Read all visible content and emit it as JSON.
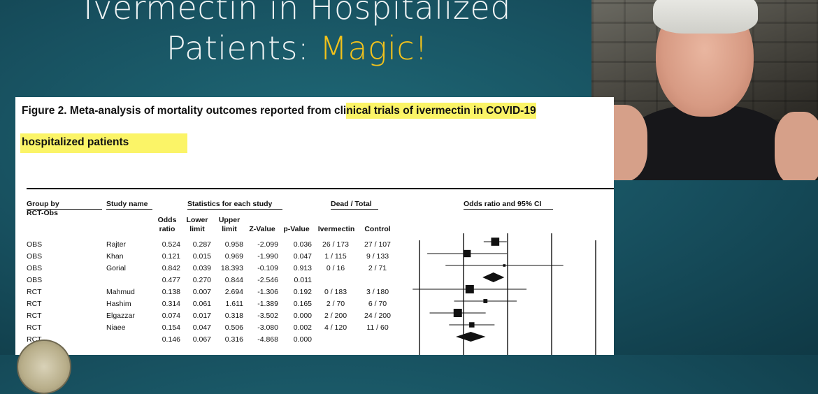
{
  "slide": {
    "title_line1": "Ivermectin in Hospitalized",
    "title_line2_prefix": "Patients:",
    "title_line2_accent": "Magic!"
  },
  "figure": {
    "caption_part1": "Figure 2.  Meta-analysis of mortality outcomes reported from cli",
    "caption_part2": "nical trials of ivermectin in COVID-19",
    "caption_line2": "hospitalized patients"
  },
  "table": {
    "headers": {
      "group_by": "Group by",
      "rct_obs": "RCT-Obs",
      "study_name": "Study name",
      "statistics": "Statistics for each study",
      "dead_total": "Dead / Total",
      "odds_ratio_ci": "Odds ratio and 95% CI",
      "odds_ratio_l1": "Odds",
      "odds_ratio_l2": "ratio",
      "lower_l1": "Lower",
      "lower_l2": "limit",
      "upper_l1": "Upper",
      "upper_l2": "limit",
      "z_value": "Z-Value",
      "p_value": "p-Value",
      "ivermectin": "Ivermectin",
      "control": "Control"
    },
    "rows": [
      {
        "group": "OBS",
        "study": "Rajter",
        "or": "0.524",
        "lower": "0.287",
        "upper": "0.958",
        "z": "-2.099",
        "p": "0.036",
        "ivm": "26 / 173",
        "ctl": "27 / 107"
      },
      {
        "group": "OBS",
        "study": "Khan",
        "or": "0.121",
        "lower": "0.015",
        "upper": "0.969",
        "z": "-1.990",
        "p": "0.047",
        "ivm": "1 / 115",
        "ctl": "9 / 133"
      },
      {
        "group": "OBS",
        "study": "Gorial",
        "or": "0.842",
        "lower": "0.039",
        "upper": "18.393",
        "z": "-0.109",
        "p": "0.913",
        "ivm": "0 / 16",
        "ctl": "2 / 71"
      },
      {
        "group": "OBS",
        "study": "",
        "or": "0.477",
        "lower": "0.270",
        "upper": "0.844",
        "z": "-2.546",
        "p": "0.011",
        "ivm": "",
        "ctl": ""
      },
      {
        "group": "RCT",
        "study": "Mahmud",
        "or": "0.138",
        "lower": "0.007",
        "upper": "2.694",
        "z": "-1.306",
        "p": "0.192",
        "ivm": "0 / 183",
        "ctl": "3 / 180"
      },
      {
        "group": "RCT",
        "study": "Hashim",
        "or": "0.314",
        "lower": "0.061",
        "upper": "1.611",
        "z": "-1.389",
        "p": "0.165",
        "ivm": "2 / 70",
        "ctl": "6 / 70"
      },
      {
        "group": "RCT",
        "study": "Elgazzar",
        "or": "0.074",
        "lower": "0.017",
        "upper": "0.318",
        "z": "-3.502",
        "p": "0.000",
        "ivm": "2 / 200",
        "ctl": "24 / 200"
      },
      {
        "group": "RCT",
        "study": "Niaee",
        "or": "0.154",
        "lower": "0.047",
        "upper": "0.506",
        "z": "-3.080",
        "p": "0.002",
        "ivm": "4 / 120",
        "ctl": "11 / 60"
      },
      {
        "group": "RCT",
        "study": "",
        "or": "0.146",
        "lower": "0.067",
        "upper": "0.316",
        "z": "-4.868",
        "p": "0.000",
        "ivm": "",
        "ctl": ""
      }
    ]
  },
  "colors": {
    "background": "#174f5e",
    "title": "#eef3f4",
    "accent": "#f3c21b",
    "highlight": "#fbf467"
  }
}
